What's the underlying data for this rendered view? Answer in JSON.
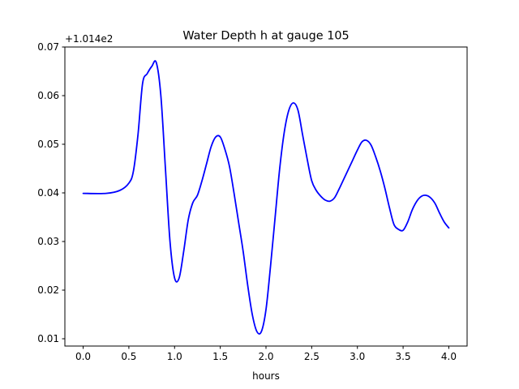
{
  "chart_data": {
    "type": "line",
    "title": "Water Depth h at gauge 105",
    "xlabel": "hours",
    "ylabel": "",
    "offset_label": "+1.014e2",
    "y_offset": 101.4,
    "xlim": [
      -0.2,
      4.2
    ],
    "ylim": [
      0.0085,
      0.07
    ],
    "xticks": [
      0.0,
      0.5,
      1.0,
      1.5,
      2.0,
      2.5,
      3.0,
      3.5,
      4.0
    ],
    "xtick_labels": [
      "0.0",
      "0.5",
      "1.0",
      "1.5",
      "2.0",
      "2.5",
      "3.0",
      "3.5",
      "4.0"
    ],
    "yticks": [
      0.01,
      0.02,
      0.03,
      0.04,
      0.05,
      0.06,
      0.07
    ],
    "ytick_labels": [
      "0.01",
      "0.02",
      "0.03",
      "0.04",
      "0.05",
      "0.06",
      "0.07"
    ],
    "grid": false,
    "series": [
      {
        "color": "#0000ff",
        "x": [
          0.0,
          0.25,
          0.4,
          0.5,
          0.55,
          0.6,
          0.65,
          0.7,
          0.75,
          0.8,
          0.85,
          0.9,
          0.95,
          1.0,
          1.05,
          1.1,
          1.15,
          1.2,
          1.25,
          1.3,
          1.35,
          1.4,
          1.45,
          1.5,
          1.55,
          1.6,
          1.65,
          1.7,
          1.75,
          1.8,
          1.85,
          1.9,
          1.95,
          2.0,
          2.05,
          2.1,
          2.15,
          2.2,
          2.25,
          2.3,
          2.35,
          2.4,
          2.45,
          2.5,
          2.55,
          2.6,
          2.65,
          2.7,
          2.75,
          2.8,
          2.85,
          2.9,
          2.95,
          3.0,
          3.05,
          3.1,
          3.15,
          3.2,
          3.25,
          3.3,
          3.35,
          3.4,
          3.45,
          3.5,
          3.55,
          3.6,
          3.65,
          3.7,
          3.75,
          3.8,
          3.85,
          3.9,
          3.95,
          4.0
        ],
        "y": [
          0.0399,
          0.0399,
          0.0405,
          0.042,
          0.0445,
          0.052,
          0.0625,
          0.0645,
          0.066,
          0.0668,
          0.06,
          0.045,
          0.03,
          0.0225,
          0.0225,
          0.028,
          0.0345,
          0.038,
          0.0395,
          0.0425,
          0.046,
          0.0495,
          0.0515,
          0.0515,
          0.049,
          0.0455,
          0.04,
          0.034,
          0.028,
          0.021,
          0.015,
          0.0115,
          0.0115,
          0.016,
          0.025,
          0.035,
          0.045,
          0.0525,
          0.057,
          0.0585,
          0.057,
          0.052,
          0.047,
          0.0425,
          0.0405,
          0.0393,
          0.0385,
          0.0383,
          0.039,
          0.0408,
          0.0428,
          0.0448,
          0.0468,
          0.0488,
          0.0505,
          0.0508,
          0.0498,
          0.0474,
          0.0445,
          0.041,
          0.037,
          0.0335,
          0.0325,
          0.0323,
          0.034,
          0.0365,
          0.0383,
          0.0393,
          0.0395,
          0.039,
          0.0378,
          0.0358,
          0.034,
          0.0328
        ]
      }
    ]
  }
}
